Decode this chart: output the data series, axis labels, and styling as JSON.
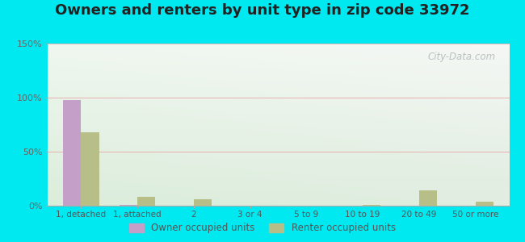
{
  "title": "Owners and renters by unit type in zip code 33972",
  "categories": [
    "1, detached",
    "1, attached",
    "2",
    "3 or 4",
    "5 to 9",
    "10 to 19",
    "20 to 49",
    "50 or more"
  ],
  "owner_values": [
    98,
    1,
    0,
    0,
    0,
    0,
    0,
    0
  ],
  "renter_values": [
    68,
    8,
    6,
    0,
    0,
    1,
    14,
    4
  ],
  "owner_color": "#c4a0c8",
  "renter_color": "#b8be88",
  "ylim": [
    0,
    150
  ],
  "yticks": [
    0,
    50,
    100,
    150
  ],
  "ytick_labels": [
    "0%",
    "50%",
    "100%",
    "150%"
  ],
  "background_outer": "#00e8f0",
  "bar_width": 0.32,
  "title_fontsize": 13,
  "legend_labels": [
    "Owner occupied units",
    "Renter occupied units"
  ],
  "watermark": "City-Data.com",
  "grid_color": "#e8b0b0",
  "bg_top_left": "#c8e8d8",
  "bg_top_right": "#e8f4f0",
  "bg_bottom_left": "#d0e8c8",
  "bg_bottom_right": "#e0f0e8"
}
